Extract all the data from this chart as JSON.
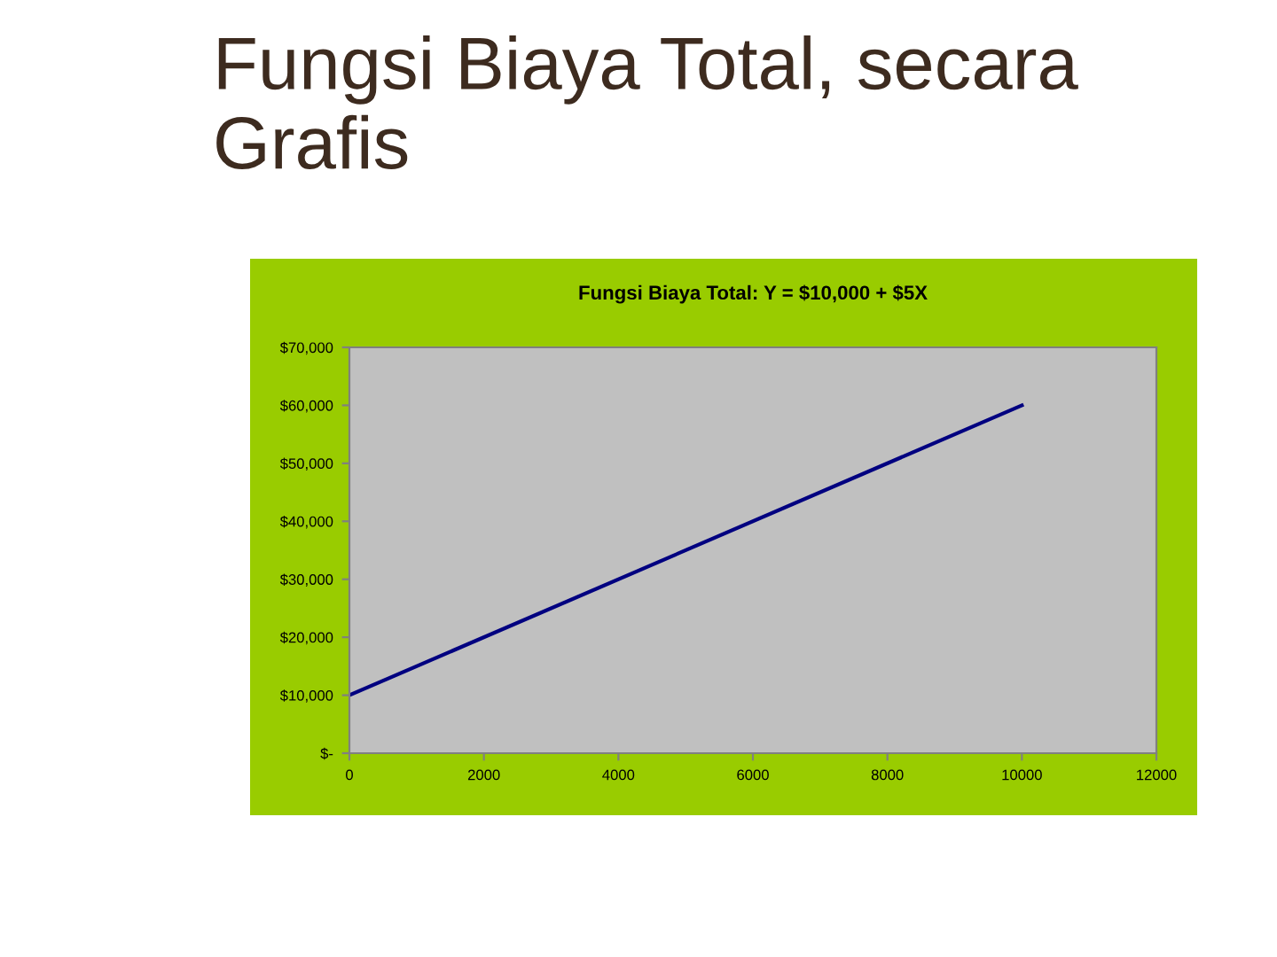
{
  "chart_data": {
    "type": "line",
    "title": "Fungsi Biaya Total, secara Grafis",
    "subtitle": "Fungsi Biaya Total: Y = $10,000 + $5X",
    "x": [
      0,
      10000
    ],
    "series": [
      {
        "color": "#000080",
        "values": [
          10000,
          60000
        ]
      }
    ],
    "xlim": [
      0,
      12000
    ],
    "xticks": [
      0,
      2000,
      4000,
      6000,
      8000,
      10000,
      12000
    ],
    "ylim": [
      0,
      70000
    ],
    "yticks": [
      {
        "value": 0,
        "label": "$-"
      },
      {
        "value": 10000,
        "label": "$10,000"
      },
      {
        "value": 20000,
        "label": "$20,000"
      },
      {
        "value": 30000,
        "label": "$30,000"
      },
      {
        "value": 40000,
        "label": "$40,000"
      },
      {
        "value": 50000,
        "label": "$50,000"
      },
      {
        "value": 60000,
        "label": "$60,000"
      },
      {
        "value": 70000,
        "label": "$70,000"
      }
    ],
    "grid": false,
    "legend": false,
    "marker": "none",
    "line_style": "solid"
  }
}
